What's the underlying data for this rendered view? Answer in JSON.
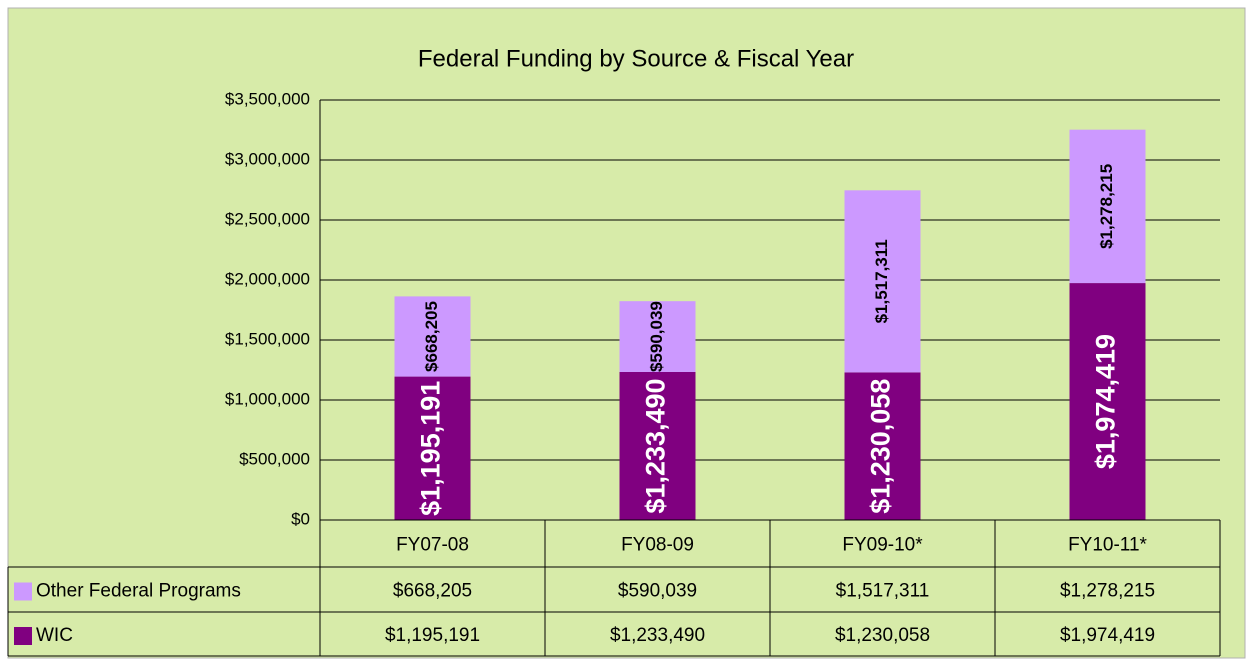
{
  "chart_data": {
    "type": "bar",
    "stacked": true,
    "title": "Federal Funding by Source & Fiscal Year",
    "categories": [
      "FY07-08",
      "FY08-09",
      "FY09-10*",
      "FY10-11*"
    ],
    "series": [
      {
        "name": "Other Federal Programs",
        "color": "#cc99ff",
        "values": [
          668205,
          590039,
          1517311,
          1278215
        ],
        "value_labels": [
          "$668,205",
          "$590,039",
          "$1,517,311",
          "$1,278,215"
        ]
      },
      {
        "name": "WIC",
        "color": "#800080",
        "values": [
          1195191,
          1233490,
          1230058,
          1974419
        ],
        "value_labels": [
          "$1,195,191",
          "$1,233,490",
          "$1,230,058",
          "$1,974,419"
        ]
      }
    ],
    "ylim": [
      0,
      3500000
    ],
    "yticks": [
      {
        "value": 0,
        "label": "$0"
      },
      {
        "value": 500000,
        "label": "$500,000"
      },
      {
        "value": 1000000,
        "label": "$1,000,000"
      },
      {
        "value": 1500000,
        "label": "$1,500,000"
      },
      {
        "value": 2000000,
        "label": "$2,000,000"
      },
      {
        "value": 2500000,
        "label": "$2,500,000"
      },
      {
        "value": 3000000,
        "label": "$3,000,000"
      },
      {
        "value": 3500000,
        "label": "$3,500,000"
      }
    ],
    "grid": true
  }
}
